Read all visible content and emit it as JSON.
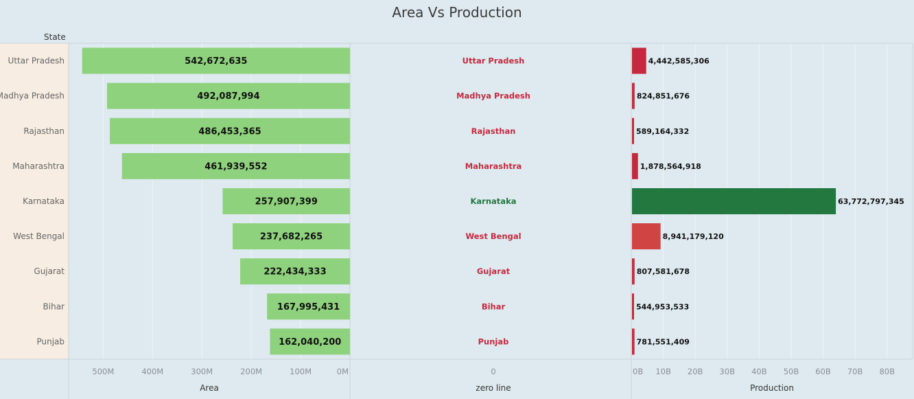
{
  "title": "Area Vs Production",
  "row_header": "State",
  "colors": {
    "area_bar": "#8fd27d",
    "prod_low": "#c42a3f",
    "prod_mid": "#d14444",
    "prod_high": "#237840",
    "mid_low": "#c42a3f",
    "mid_high": "#237840"
  },
  "chart_data": {
    "type": "bar",
    "categories": [
      "Uttar Pradesh",
      "Madhya Pradesh",
      "Rajasthan",
      "Maharashtra",
      "Karnataka",
      "West Bengal",
      "Gujarat",
      "Bihar",
      "Punjab"
    ],
    "series": [
      {
        "name": "Area",
        "values": [
          542672635,
          492087994,
          486453365,
          461939552,
          257907399,
          237682265,
          222434333,
          167995431,
          162040200
        ],
        "labels": [
          "542,672,635",
          "492,087,994",
          "486,453,365",
          "461,939,552",
          "257,907,399",
          "237,682,265",
          "222,434,333",
          "167,995,431",
          "162,040,200"
        ]
      },
      {
        "name": "Production",
        "values": [
          4442585306,
          824851676,
          589164332,
          1878564918,
          63772797345,
          8941179120,
          807581678,
          544953533,
          781551409
        ],
        "labels": [
          "4,442,585,306",
          "824,851,676",
          "589,164,332",
          "1,878,564,918",
          "63,772,797,345",
          "8,941,179,120",
          "807,581,678",
          "544,953,533",
          "781,551,409"
        ]
      }
    ],
    "area_axis": {
      "label": "Area",
      "range": [
        0,
        570000000
      ],
      "reversed": true,
      "ticks": [
        500000000,
        400000000,
        300000000,
        200000000,
        100000000,
        0
      ],
      "tick_labels": [
        "500M",
        "400M",
        "300M",
        "200M",
        "100M",
        "0M"
      ]
    },
    "zero_axis": {
      "label": "zero line",
      "tick_labels": [
        "0"
      ]
    },
    "production_axis": {
      "label": "Production",
      "range": [
        0,
        88000000000
      ],
      "ticks": [
        0,
        10000000000,
        20000000000,
        30000000000,
        40000000000,
        50000000000,
        60000000000,
        70000000000,
        80000000000
      ],
      "tick_labels": [
        "0B",
        "10B",
        "20B",
        "30B",
        "40B",
        "50B",
        "60B",
        "70B",
        "80B"
      ]
    },
    "grid": true
  }
}
